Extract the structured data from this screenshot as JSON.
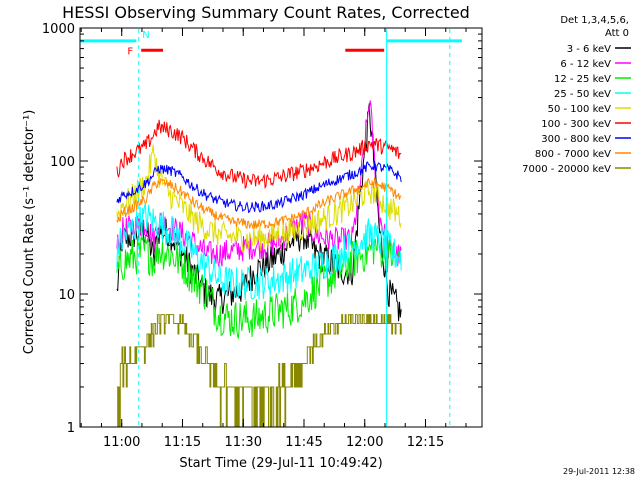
{
  "chart_data": {
    "type": "line",
    "title": "HESSI Observing Summary Count Rates, Corrected",
    "xlabel": "Start Time (29-Jul-11 10:49:42)",
    "ylabel": "Corrected Count Rate (s⁻¹ detector⁻¹)",
    "yscale": "log",
    "ylim": [
      1,
      1000
    ],
    "y_ticks": [
      {
        "value": 1,
        "label": "1"
      },
      {
        "value": 10,
        "label": "10"
      },
      {
        "value": 100,
        "label": "100"
      },
      {
        "value": 1000,
        "label": "1000"
      }
    ],
    "xlim": [
      10.8283,
      12.4825
    ],
    "x_ticks": [
      {
        "value": 11.0,
        "label": "11:00"
      },
      {
        "value": 11.25,
        "label": "11:15"
      },
      {
        "value": 11.5,
        "label": "11:30"
      },
      {
        "value": 11.75,
        "label": "11:45"
      },
      {
        "value": 12.0,
        "label": "12:00"
      },
      {
        "value": 12.25,
        "label": "12:15"
      }
    ],
    "legend_header": [
      "Det 1,3,4,5,6,",
      "Att 0"
    ],
    "legend_position": "right",
    "timestamp": "29-Jul-2011 12:38",
    "x": [
      10.98,
      11.0,
      11.05,
      11.1,
      11.133,
      11.15,
      11.2,
      11.25,
      11.3,
      11.35,
      11.4,
      11.45,
      11.5,
      11.55,
      11.6,
      11.65,
      11.7,
      11.75,
      11.8,
      11.85,
      11.9,
      11.95,
      11.99,
      12.02,
      12.04,
      12.06,
      12.1,
      12.12,
      12.15
    ],
    "series": [
      {
        "name": "3 - 6 keV",
        "color": "#000000",
        "noise": 0.12,
        "values": [
          10,
          25,
          28,
          30,
          18,
          30,
          28,
          20,
          14,
          10,
          9,
          10,
          11,
          15,
          17,
          20,
          25,
          28,
          20,
          18,
          15,
          15,
          80,
          240,
          90,
          30,
          10,
          9,
          7
        ]
      },
      {
        "name": "6 - 12 keV",
        "color": "#ff00ff",
        "noise": 0.1,
        "values": [
          22,
          30,
          32,
          34,
          25,
          36,
          32,
          28,
          24,
          20,
          20,
          21,
          22,
          23,
          23,
          25,
          30,
          35,
          28,
          26,
          25,
          26,
          90,
          300,
          100,
          40,
          21,
          20,
          19
        ]
      },
      {
        "name": "12 - 25 keV",
        "color": "#00ee00",
        "noise": 0.15,
        "values": [
          14,
          17,
          19,
          21,
          18,
          22,
          20,
          17,
          13,
          10,
          7,
          6.5,
          6.5,
          6.5,
          7,
          7.5,
          8,
          9,
          11,
          13,
          15,
          18,
          20,
          21,
          23,
          22,
          20,
          19,
          17
        ]
      },
      {
        "name": "25 - 50 keV",
        "color": "#00ffff",
        "noise": 0.13,
        "values": [
          20,
          26,
          32,
          38,
          35,
          34,
          30,
          25,
          20,
          16,
          13,
          12,
          12,
          12,
          12.5,
          13,
          14,
          15,
          16,
          18,
          20,
          23,
          26,
          28,
          27,
          25,
          22,
          20,
          19
        ]
      },
      {
        "name": "50 - 100 keV",
        "color": "#dddd00",
        "noise": 0.1,
        "values": [
          38,
          46,
          55,
          70,
          120,
          80,
          55,
          45,
          36,
          31,
          28,
          27,
          26,
          26,
          27,
          28,
          30,
          32,
          35,
          38,
          42,
          48,
          55,
          60,
          58,
          52,
          45,
          42,
          38
        ]
      },
      {
        "name": "100 - 300 keV",
        "color": "#ff0000",
        "noise": 0.06,
        "values": [
          80,
          100,
          115,
          130,
          160,
          180,
          170,
          150,
          120,
          100,
          85,
          77,
          72,
          70,
          72,
          75,
          80,
          85,
          92,
          100,
          108,
          115,
          125,
          135,
          135,
          130,
          125,
          120,
          110
        ]
      },
      {
        "name": "300 - 800 keV",
        "color": "#0000ff",
        "noise": 0.04,
        "values": [
          50,
          55,
          60,
          68,
          80,
          88,
          85,
          76,
          63,
          55,
          50,
          47,
          45,
          45,
          46,
          48,
          52,
          56,
          62,
          68,
          74,
          80,
          86,
          92,
          92,
          90,
          86,
          82,
          75
        ]
      },
      {
        "name": "800 - 7000 keV",
        "color": "#ff8800",
        "noise": 0.04,
        "values": [
          34,
          40,
          45,
          52,
          65,
          70,
          66,
          58,
          48,
          42,
          38,
          35,
          34,
          33,
          34,
          35,
          37,
          40,
          45,
          50,
          55,
          60,
          64,
          68,
          68,
          66,
          62,
          58,
          52
        ]
      },
      {
        "name": "7000 - 20000 keV",
        "color": "#888800",
        "noise": 0.0,
        "values": [
          1.4,
          2.7,
          3.6,
          4.3,
          5.3,
          6,
          6.5,
          5.8,
          4.3,
          3,
          2,
          1.8,
          1.6,
          1.6,
          1.6,
          1.8,
          2.4,
          3.2,
          4.3,
          5.3,
          6,
          6.4,
          6.5,
          6.5,
          6.5,
          6.4,
          6.1,
          5.8,
          5.3
        ]
      }
    ],
    "markers": [
      {
        "type": "solid-bar",
        "color": "#00ffff",
        "level": 800,
        "x_start": 10.8283,
        "x_end": 11.06
      },
      {
        "type": "solid-bar",
        "color": "#00ffff",
        "level": 800,
        "x_start": 12.09,
        "x_end": 12.4
      },
      {
        "type": "vline-solid",
        "color": "#00ffff",
        "x": 10.8283
      },
      {
        "type": "vline-solid",
        "color": "#00ffff",
        "x": 12.09
      },
      {
        "type": "vline-dashed",
        "color": "#00ffff",
        "x": 11.07
      },
      {
        "type": "vline-dashed",
        "color": "#00ffff",
        "x": 12.35
      },
      {
        "type": "solid-bar",
        "color": "#ff0000",
        "level": 680,
        "x_start": 11.08,
        "x_end": 11.17
      },
      {
        "type": "solid-bar",
        "color": "#ff0000",
        "level": 680,
        "x_start": 11.92,
        "x_end": 12.08
      },
      {
        "type": "label",
        "text": "F",
        "color": "#ff0000",
        "x": 11.035,
        "level": 680
      },
      {
        "type": "label",
        "text": "N",
        "color": "#00ffff",
        "x": 11.1,
        "level": 900
      }
    ]
  }
}
